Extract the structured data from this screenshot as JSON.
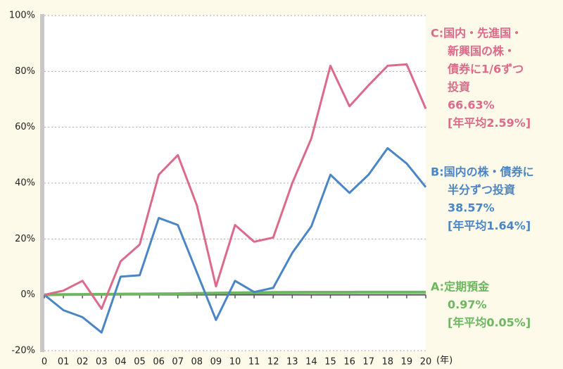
{
  "chart_data": {
    "type": "line",
    "categories": [
      "0",
      "01",
      "02",
      "03",
      "04",
      "05",
      "06",
      "07",
      "08",
      "09",
      "10",
      "11",
      "12",
      "13",
      "14",
      "15",
      "16",
      "17",
      "18",
      "19",
      "20"
    ],
    "x_label": "(年)",
    "ylim": [
      -20,
      100
    ],
    "yticks": [
      {
        "value": -20,
        "label": "-20%"
      },
      {
        "value": 0,
        "label": "0%"
      },
      {
        "value": 20,
        "label": "20%"
      },
      {
        "value": 40,
        "label": "40%"
      },
      {
        "value": 60,
        "label": "60%"
      },
      {
        "value": 80,
        "label": "80%"
      },
      {
        "value": 100,
        "label": "100%"
      }
    ],
    "grid": true,
    "series": [
      {
        "color": "#6cb760",
        "values": [
          0,
          0.1,
          0.15,
          0.2,
          0.25,
          0.3,
          0.35,
          0.4,
          0.5,
          0.6,
          0.7,
          0.8,
          0.85,
          0.9,
          0.92,
          0.93,
          0.94,
          0.95,
          0.96,
          0.96,
          0.97
        ]
      },
      {
        "color": "#4a86c5",
        "values": [
          0,
          -5.5,
          -8,
          -13.5,
          6.5,
          7,
          27.5,
          25,
          8,
          -9,
          5,
          1,
          2.5,
          15,
          24.5,
          43,
          36.5,
          43,
          52.5,
          47,
          38.57
        ]
      },
      {
        "color": "#dc6a8a",
        "values": [
          0,
          1.5,
          5,
          -5,
          12,
          18,
          43,
          50,
          32,
          3,
          25,
          19,
          20.5,
          40,
          56,
          82,
          67.5,
          75,
          82,
          82.5,
          66.63
        ]
      }
    ],
    "annotations": [
      {
        "color": "#6cb760",
        "lines": [
          "A:定期預金",
          "0.97%",
          "[年平均0.05%]"
        ]
      },
      {
        "color": "#4a86c5",
        "lines": [
          "B:国内の株・債券に",
          "半分ずつ投資",
          "38.57%",
          "[年平均1.64%]"
        ]
      },
      {
        "color": "#dc6a8a",
        "lines": [
          "C:国内・先進国・",
          "新興国の株・",
          "債券に1/6ずつ",
          "投資",
          "66.63%",
          "[年平均2.59%]"
        ]
      }
    ]
  }
}
